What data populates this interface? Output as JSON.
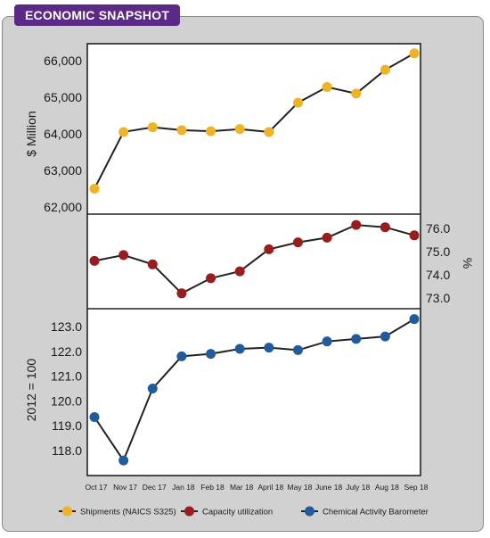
{
  "header": {
    "title": "ECONOMIC SNAPSHOT"
  },
  "chart_data": [
    {
      "type": "line",
      "name": "Shipments (NAICS S325)",
      "ylabel": "$ Million",
      "ylim": [
        62000,
        66000
      ],
      "y_ticks": [
        "62,000",
        "63,000",
        "64,000",
        "65,000",
        "66,000"
      ],
      "color": "#f0b323",
      "values": [
        62500,
        64050,
        64180,
        64100,
        64070,
        64130,
        64050,
        64850,
        65280,
        65100,
        65750,
        66200
      ]
    },
    {
      "type": "line",
      "name": "Capacity utilization",
      "ylabel": "%",
      "ylim": [
        73.0,
        76.0
      ],
      "y_ticks": [
        "73.0",
        "74.0",
        "75.0",
        "76.0"
      ],
      "color": "#9b1c1c",
      "values": [
        74.6,
        74.85,
        74.45,
        73.2,
        73.85,
        74.15,
        75.1,
        75.4,
        75.6,
        76.15,
        76.05,
        75.7
      ]
    },
    {
      "type": "line",
      "name": "Chemical Activity Barometer",
      "ylabel": "2012 = 100",
      "ylim": [
        118.0,
        123.0
      ],
      "y_ticks": [
        "118.0",
        "119.0",
        "120.0",
        "121.0",
        "122.0",
        "123.0"
      ],
      "color": "#1f5b9e",
      "values": [
        119.35,
        117.6,
        120.5,
        121.8,
        121.9,
        122.1,
        122.15,
        122.05,
        122.4,
        122.5,
        122.6,
        123.3
      ]
    }
  ],
  "x_categories": [
    "Oct 17",
    "Nov 17",
    "Dec 17",
    "Jan 18",
    "Feb 18",
    "Mar 18",
    "April 18",
    "May 18",
    "June 18",
    "July 18",
    "Aug 18",
    "Sep 18"
  ],
  "legend": [
    {
      "label": "Shipments (NAICS S325)",
      "color": "#f0b323"
    },
    {
      "label": "Capacity utilization",
      "color": "#9b1c1c"
    },
    {
      "label": "Chemical Activity Barometer",
      "color": "#1f5b9e"
    }
  ]
}
